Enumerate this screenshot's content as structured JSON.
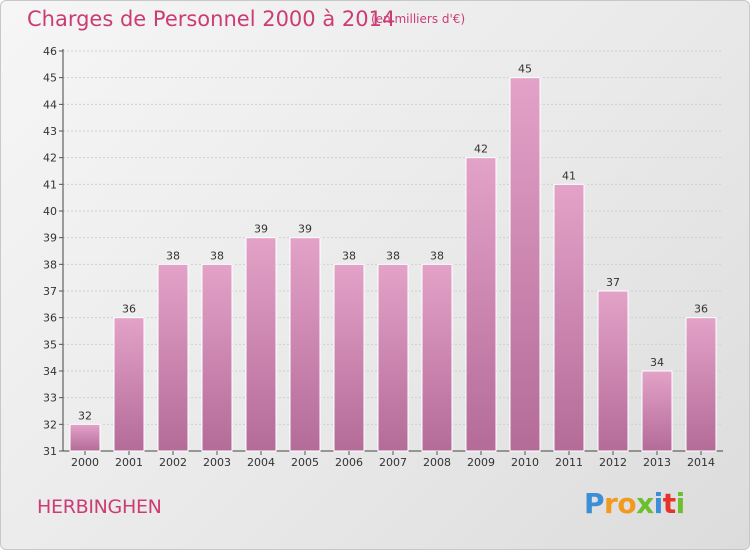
{
  "header": {
    "title": "Charges de Personnel 2000 à 2014",
    "subtitle": "(en milliers d'€)"
  },
  "footer": {
    "commune": "HERBINGHEN",
    "logo": {
      "letters": [
        "P",
        "r",
        "o",
        "x",
        "i",
        "t",
        "i"
      ],
      "colors": [
        "#3b8fd6",
        "#f29a1f",
        "#f29a1f",
        "#6cbf2e",
        "#3b8fd6",
        "#e5342c",
        "#6cbf2e"
      ]
    }
  },
  "chart_data": {
    "type": "bar",
    "title": "Charges de Personnel 2000 à 2014",
    "subtitle": "(en milliers d'€)",
    "xlabel": "",
    "ylabel": "",
    "categories": [
      "2000",
      "2001",
      "2002",
      "2003",
      "2004",
      "2005",
      "2006",
      "2007",
      "2008",
      "2009",
      "2010",
      "2011",
      "2012",
      "2013",
      "2014"
    ],
    "values": [
      32,
      36,
      38,
      38,
      39,
      39,
      38,
      38,
      38,
      42,
      45,
      41,
      37,
      34,
      36
    ],
    "ylim": [
      31,
      46
    ],
    "yticks": [
      31,
      32,
      33,
      34,
      35,
      36,
      37,
      38,
      39,
      40,
      41,
      42,
      43,
      44,
      45,
      46
    ],
    "grid": true,
    "bar_color": "#e3a2c8",
    "bar_color_dark": "#b46b98",
    "legend": "none"
  }
}
